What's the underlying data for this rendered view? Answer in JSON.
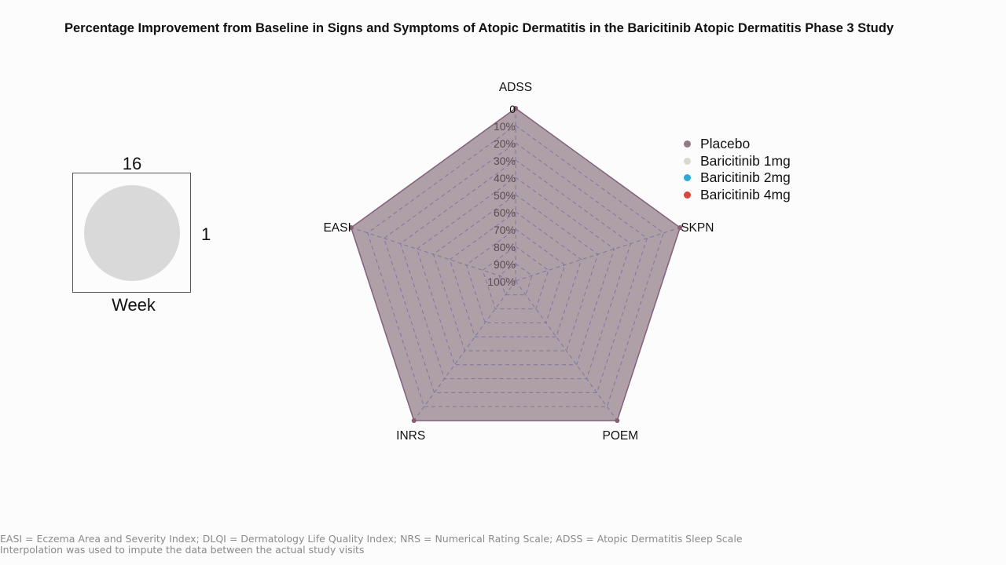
{
  "chart_data": {
    "type": "radar",
    "title": "Percentage Improvement from Baseline in Signs and Symptoms of Atopic Dermatitis in the Baricitinib Atopic Dermatitis Phase 3 Study",
    "axes": [
      "ADSS",
      "SKPN",
      "POEM",
      "INRS",
      "EASI"
    ],
    "radial_ticks": [
      "0",
      "10%",
      "20%",
      "30%",
      "40%",
      "50%",
      "60%",
      "70%",
      "80%",
      "90%",
      "100%"
    ],
    "radial_direction": "0 at outer edge, 100% at center",
    "series": [
      {
        "name": "Placebo",
        "color": "#917b86",
        "values": [
          0,
          0,
          0,
          0,
          0
        ]
      },
      {
        "name": "Baricitinib 1mg",
        "color": "#d9d9d0",
        "values": [
          0,
          0,
          0,
          0,
          0
        ]
      },
      {
        "name": "Baricitinib 2mg",
        "color": "#2eaad6",
        "values": [
          0,
          0,
          0,
          0,
          0
        ]
      },
      {
        "name": "Baricitinib 4mg",
        "color": "#d9473c",
        "values": [
          0,
          0,
          0,
          0,
          0
        ]
      }
    ],
    "legend_position": "right",
    "grid": "dashed"
  },
  "week_widget": {
    "value": "16",
    "side_value": "1",
    "label": "Week"
  },
  "footnotes": [
    "EASI = Eczema Area and Severity Index; DLQI = Dermatology Life Quality Index; NRS = Numerical Rating Scale; ADSS = Atopic Dermatitis Sleep Scale",
    "Interpolation was used to impute the data between the actual study visits"
  ],
  "colors": {
    "grid_line": "#6f6aa0",
    "polygon_fill": "#917b86",
    "polygon_stroke": "#8a5e6e"
  }
}
